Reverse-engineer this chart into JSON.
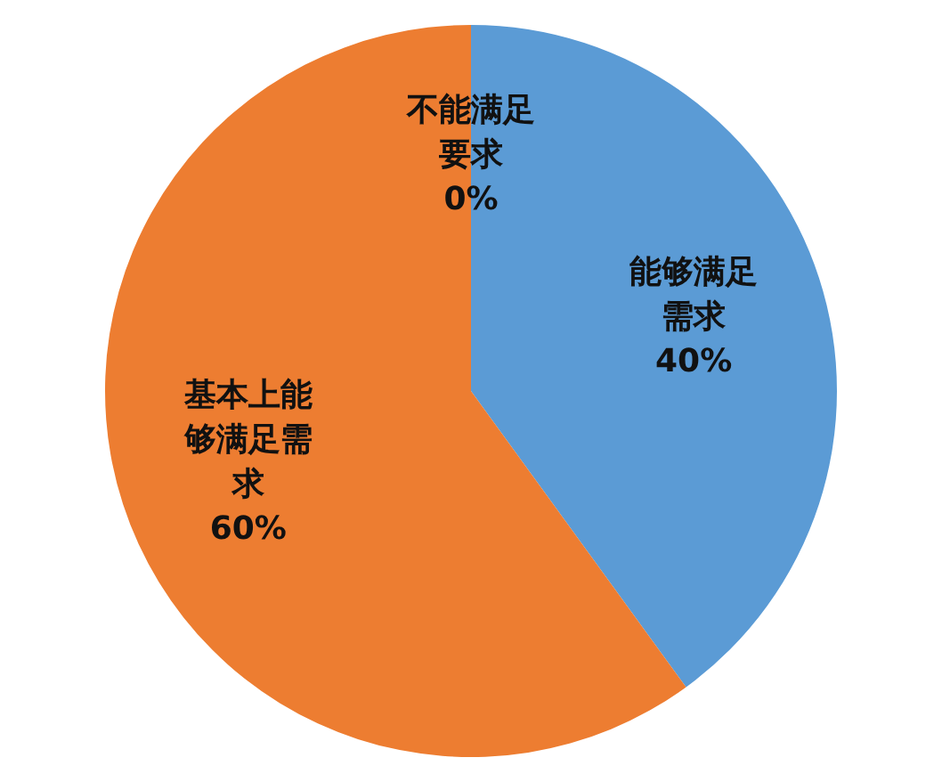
{
  "chart_data": {
    "type": "pie",
    "categories": [
      "能够满足需求",
      "基本上能够满足需求",
      "不能满足要求"
    ],
    "values": [
      40,
      60,
      0
    ],
    "colors": [
      "#5b9bd5",
      "#ed7d31",
      "#a5a5a5"
    ],
    "value_labels": [
      "40%",
      "60%",
      "0%"
    ]
  }
}
